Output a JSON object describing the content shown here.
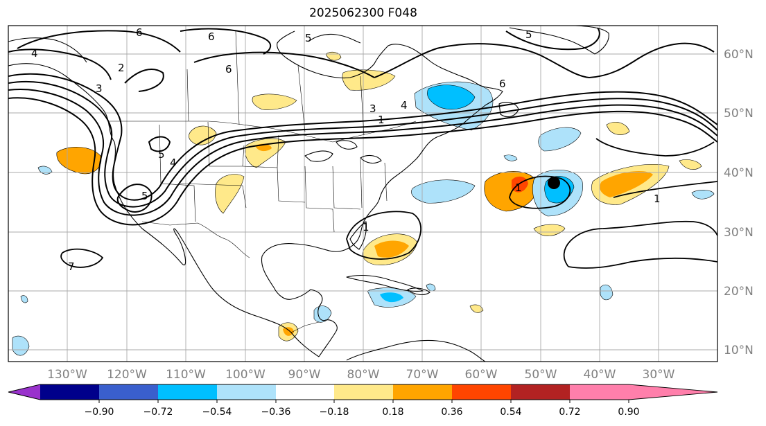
{
  "title": "2025062300 F048",
  "map": {
    "lon_labels": [
      "130°W",
      "120°W",
      "110°W",
      "100°W",
      "90°W",
      "80°W",
      "70°W",
      "60°W",
      "50°W",
      "40°W",
      "30°W"
    ],
    "lat_labels": [
      "60°N",
      "50°N",
      "40°N",
      "30°N",
      "20°N",
      "10°N"
    ],
    "contour_labels": [
      "6",
      "6",
      "5",
      "6",
      "4",
      "2",
      "3",
      "5",
      "4",
      "1",
      "3",
      "4",
      "6",
      "5",
      "5",
      "1",
      "1",
      "1",
      "7"
    ]
  },
  "colorbar": {
    "ticks": [
      "−0.90",
      "−0.72",
      "−0.54",
      "−0.36",
      "−0.18",
      "0.18",
      "0.36",
      "0.54",
      "0.72",
      "0.90"
    ],
    "colors": [
      "#9932cc",
      "#00008b",
      "#3a5fcd",
      "#00bfff",
      "#aee2fa",
      "#ffffff",
      "#ffe98a",
      "#ffa500",
      "#ff4500",
      "#b22222",
      "#ff7fab"
    ]
  }
}
